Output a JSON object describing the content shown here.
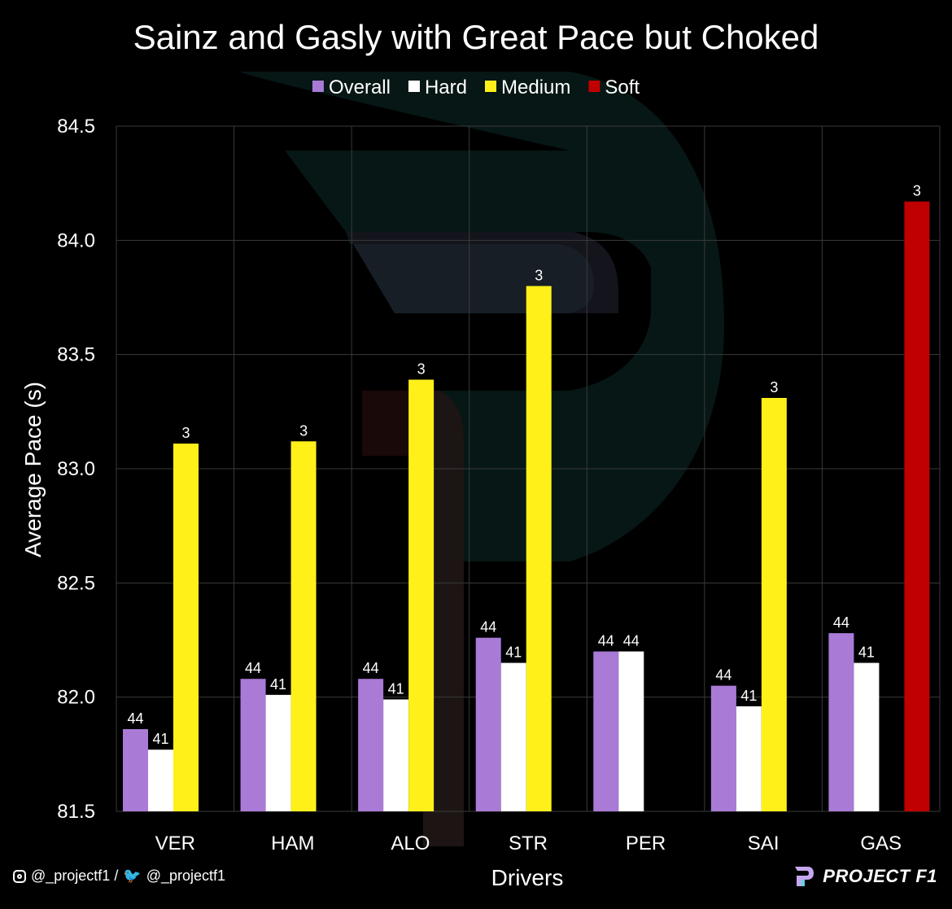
{
  "chart_data": {
    "type": "bar",
    "title": "Sainz and Gasly with Great Pace but Choked",
    "xlabel": "Drivers",
    "ylabel": "Average Pace (s)",
    "ylim": [
      81.5,
      84.5
    ],
    "yticks": [
      "81.5",
      "82.0",
      "82.5",
      "83.0",
      "83.5",
      "84.0",
      "84.5"
    ],
    "grid": true,
    "legend_position": "top",
    "categories": [
      "VER",
      "HAM",
      "ALO",
      "STR",
      "PER",
      "SAI",
      "GAS"
    ],
    "series": [
      {
        "name": "Overall",
        "color": "#a97bd6",
        "values": [
          81.86,
          82.08,
          82.08,
          82.26,
          82.2,
          82.05,
          82.28
        ],
        "labels": [
          "44",
          "44",
          "44",
          "44",
          "44",
          "44",
          "44"
        ]
      },
      {
        "name": "Hard",
        "color": "#ffffff",
        "values": [
          81.77,
          82.01,
          81.99,
          82.15,
          82.2,
          81.96,
          82.15
        ],
        "labels": [
          "41",
          "41",
          "41",
          "41",
          "44",
          "41",
          "41"
        ]
      },
      {
        "name": "Medium",
        "color": "#fff01a",
        "values": [
          83.11,
          83.12,
          83.39,
          83.8,
          null,
          83.31,
          null
        ],
        "labels": [
          "3",
          "3",
          "3",
          "3",
          "",
          "3",
          ""
        ]
      },
      {
        "name": "Soft",
        "color": "#c00000",
        "values": [
          null,
          null,
          null,
          null,
          null,
          null,
          84.17
        ],
        "labels": [
          "",
          "",
          "",
          "",
          "",
          "",
          "3"
        ]
      }
    ]
  },
  "footer": {
    "handles": "@_projectf1 / ",
    "twitter_handle": "@_projectf1",
    "brand": "PROJECT F1",
    "brand_mark_text": "PF1",
    "instagram_icon": "instagram-icon",
    "twitter_icon": "twitter-bird-icon"
  }
}
